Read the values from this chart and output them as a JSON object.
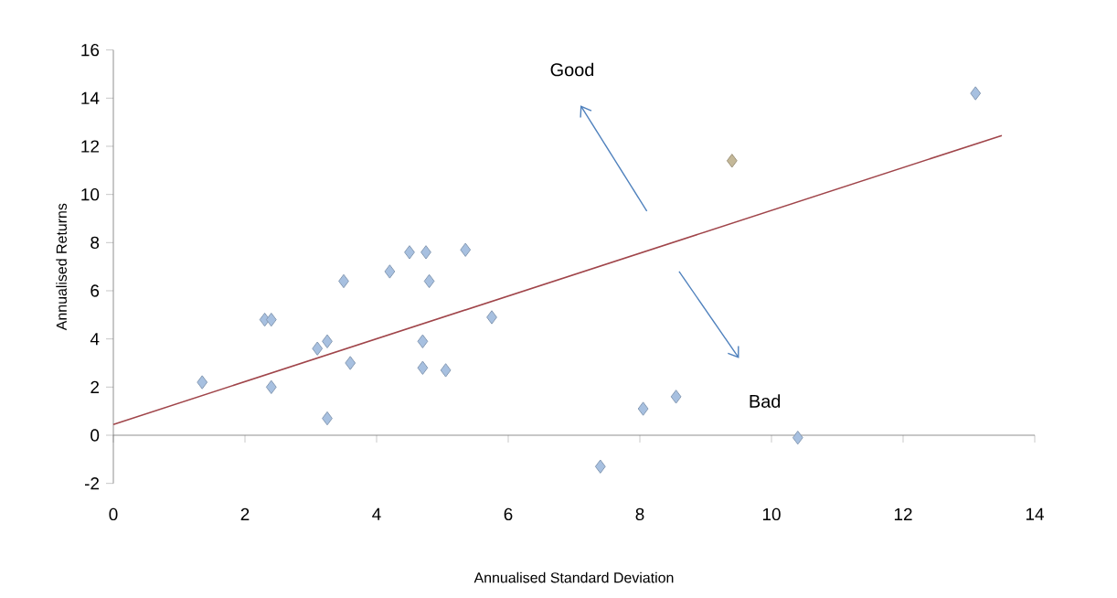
{
  "chart_data": {
    "type": "scatter",
    "xlabel": "Annualised Standard Deviation",
    "ylabel": "Annualised Returns",
    "xlim": [
      0,
      14
    ],
    "ylim": [
      -2,
      16
    ],
    "xticks": [
      0,
      2,
      4,
      6,
      8,
      10,
      12,
      14
    ],
    "yticks": [
      -2,
      0,
      2,
      4,
      6,
      8,
      10,
      12,
      14,
      16
    ],
    "marker": "diamond",
    "annotations": [
      "Good",
      "Bad"
    ],
    "series": [
      {
        "color": "#a7c0e0",
        "x": [
          1.35,
          2.3,
          2.4,
          2.4,
          3.1,
          3.25,
          3.25,
          3.5,
          3.6,
          4.2,
          4.5,
          4.75,
          4.8,
          4.7,
          4.7,
          5.05,
          5.35,
          5.75,
          7.4,
          8.05,
          8.55,
          10.4,
          13.1
        ],
        "values": [
          2.2,
          4.8,
          4.8,
          2.0,
          3.6,
          3.9,
          0.7,
          6.4,
          3.0,
          6.8,
          7.6,
          7.6,
          6.4,
          3.9,
          2.8,
          2.7,
          7.7,
          4.9,
          -1.3,
          1.1,
          1.6,
          -0.1,
          14.2
        ]
      },
      {
        "color": "#c4b898",
        "x": [
          9.4
        ],
        "values": [
          11.4
        ]
      },
      {
        "type": "line",
        "color": "#a0454a",
        "marker": "none",
        "line_style": "solid",
        "x": [
          0,
          13.5
        ],
        "values": [
          0.45,
          12.45
        ]
      }
    ]
  }
}
